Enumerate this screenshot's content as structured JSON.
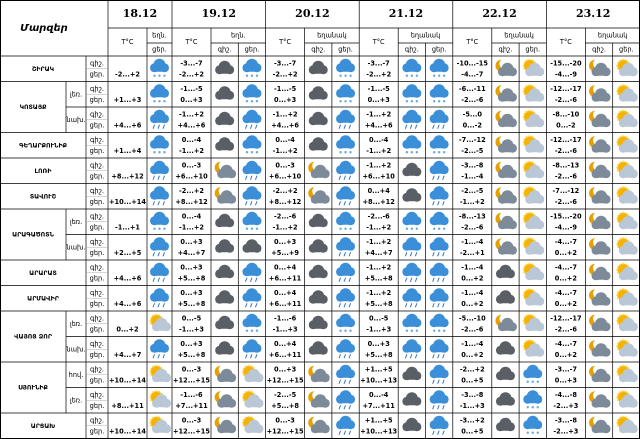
{
  "header": {
    "corner": "Մարզեր",
    "dates": [
      {
        "date": "18.12",
        "temp": "T°C",
        "weather": "եղն.",
        "sub": [
          "ցեր."
        ]
      },
      {
        "date": "19.12",
        "temp": "T°C",
        "weather": "եղն.",
        "sub": [
          "գիշ.",
          "ցեր."
        ]
      },
      {
        "date": "20.12",
        "temp": "T°C",
        "weather": "եղանակ",
        "sub": [
          "գիշ.",
          "ցեր."
        ]
      },
      {
        "date": "21.12",
        "temp": "T°C",
        "weather": "եղանակ",
        "sub": [
          "գիշ.",
          "ցեր."
        ]
      },
      {
        "date": "22.12",
        "temp": "T°C",
        "weather": "եղանակ",
        "sub": [
          "գիշ.",
          "ցեր."
        ]
      },
      {
        "date": "23.12",
        "temp": "T°C",
        "weather": "եղանակ",
        "sub": [
          "գիշ.",
          "ցեր."
        ]
      }
    ]
  },
  "row_labels": [
    "գիշ.",
    "ցեր."
  ],
  "regions": [
    {
      "name": "ՇԻՐԱԿ",
      "groups": [
        {
          "cells": [
            {
              "t": [
                "-2...+2"
              ],
              "i": [
                "s"
              ]
            },
            {
              "t": [
                "-3...-7",
                "-2...+2"
              ],
              "i": [
                "d",
                "s"
              ]
            },
            {
              "t": [
                "-3...-7",
                "-2...+2"
              ],
              "i": [
                "d",
                "s"
              ]
            },
            {
              "t": [
                "-3...-7",
                "-2...+2"
              ],
              "i": [
                "s",
                "s"
              ]
            },
            {
              "t": [
                "-10...-15",
                "-4...-7"
              ],
              "i": [
                "m",
                "u"
              ]
            },
            {
              "t": [
                "-15...-20",
                "-4...-9"
              ],
              "i": [
                "m",
                "u"
              ]
            }
          ]
        }
      ]
    },
    {
      "name": "ԿՈՏԱՅՔ",
      "groups": [
        {
          "label": "լեռ.",
          "cells": [
            {
              "t": [
                "+1...+3"
              ],
              "i": [
                "s"
              ]
            },
            {
              "t": [
                "-1...-5",
                "0...+3"
              ],
              "i": [
                "d",
                "s"
              ]
            },
            {
              "t": [
                "-1...-5",
                "0...+3"
              ],
              "i": [
                "d",
                "s"
              ]
            },
            {
              "t": [
                "-1...-5",
                "0...+3"
              ],
              "i": [
                "s",
                "s"
              ]
            },
            {
              "t": [
                "-6...-11",
                "-2...-6"
              ],
              "i": [
                "m",
                "u"
              ]
            },
            {
              "t": [
                "-12...-17",
                "-2...-6"
              ],
              "i": [
                "m",
                "u"
              ]
            }
          ]
        },
        {
          "label": "նախ.",
          "cells": [
            {
              "t": [
                "+4...+6"
              ],
              "i": [
                "r"
              ]
            },
            {
              "t": [
                "-1...+2",
                "+4...+6"
              ],
              "i": [
                "d",
                "r"
              ]
            },
            {
              "t": [
                "-1...+2",
                "+4...+6"
              ],
              "i": [
                "d",
                "r"
              ]
            },
            {
              "t": [
                "-1...+2",
                "+4...+6"
              ],
              "i": [
                "r",
                "r"
              ]
            },
            {
              "t": [
                "-5...0",
                "0...-2"
              ],
              "i": [
                "m",
                "u"
              ]
            },
            {
              "t": [
                "-8...-10",
                "0...-2"
              ],
              "i": [
                "m",
                "u"
              ]
            }
          ]
        }
      ]
    },
    {
      "name": "ԳԵՂԱՐՔՈՒՆԻՔ",
      "groups": [
        {
          "cells": [
            {
              "t": [
                "+1...+4"
              ],
              "i": [
                "s"
              ]
            },
            {
              "t": [
                "0...-4",
                "-1...+2"
              ],
              "i": [
                "d",
                "s"
              ]
            },
            {
              "t": [
                "0...-4",
                "-1...+2"
              ],
              "i": [
                "d",
                "s"
              ]
            },
            {
              "t": [
                "0...-4",
                "-1...+2"
              ],
              "i": [
                "s",
                "s"
              ]
            },
            {
              "t": [
                "-7...-12",
                "-2...-5"
              ],
              "i": [
                "m",
                "u"
              ]
            },
            {
              "t": [
                "-12...-17",
                "-2...-6"
              ],
              "i": [
                "m",
                "u"
              ]
            }
          ]
        }
      ]
    },
    {
      "name": "ԼՈՌԻ",
      "groups": [
        {
          "cells": [
            {
              "t": [
                "+8...+12"
              ],
              "i": [
                "r"
              ]
            },
            {
              "t": [
                "0...-3",
                "+6...+10"
              ],
              "i": [
                "m",
                "r"
              ]
            },
            {
              "t": [
                "0...-3",
                "+6...+10"
              ],
              "i": [
                "m",
                "r"
              ]
            },
            {
              "t": [
                "-1...+2",
                "+6...+10"
              ],
              "i": [
                "d",
                "r"
              ]
            },
            {
              "t": [
                "-3...-8",
                "-1...-4"
              ],
              "i": [
                "m",
                "u"
              ]
            },
            {
              "t": [
                "-8...-13",
                "-2...-6"
              ],
              "i": [
                "m",
                "u"
              ]
            }
          ]
        }
      ]
    },
    {
      "name": "ՏԱՎՈՒՇ",
      "groups": [
        {
          "cells": [
            {
              "t": [
                "+10...+14"
              ],
              "i": [
                "r"
              ]
            },
            {
              "t": [
                "-2...+2",
                "+8...+12"
              ],
              "i": [
                "m",
                "r"
              ]
            },
            {
              "t": [
                "-2...+2",
                "+8...+12"
              ],
              "i": [
                "m",
                "r"
              ]
            },
            {
              "t": [
                "0...+4",
                "+8...+12"
              ],
              "i": [
                "d",
                "r"
              ]
            },
            {
              "t": [
                "-2...-5",
                "-1...+2"
              ],
              "i": [
                "m",
                "u"
              ]
            },
            {
              "t": [
                "-7...-12",
                "-2...-6"
              ],
              "i": [
                "m",
                "u"
              ]
            }
          ]
        }
      ]
    },
    {
      "name": "ԱՐԱԳԱԾՈՏՆ",
      "groups": [
        {
          "label": "լեռ.",
          "cells": [
            {
              "t": [
                "-1...+1"
              ],
              "i": [
                "s"
              ]
            },
            {
              "t": [
                "0...-4",
                "-1...+2"
              ],
              "i": [
                "d",
                "s"
              ]
            },
            {
              "t": [
                "-2...-6",
                "-1...+2"
              ],
              "i": [
                "d",
                "s"
              ]
            },
            {
              "t": [
                "-2...-6",
                "-1...+2"
              ],
              "i": [
                "s",
                "s"
              ]
            },
            {
              "t": [
                "-8...-13",
                "-2...-6"
              ],
              "i": [
                "m",
                "u"
              ]
            },
            {
              "t": [
                "-15...-20",
                "-4...-9"
              ],
              "i": [
                "m",
                "u"
              ]
            }
          ]
        },
        {
          "label": "նախ.",
          "cells": [
            {
              "t": [
                "+2...+5"
              ],
              "i": [
                "r"
              ]
            },
            {
              "t": [
                "0...+3",
                "+4...+7"
              ],
              "i": [
                "d",
                "d"
              ]
            },
            {
              "t": [
                "0...+3",
                "+5...+9"
              ],
              "i": [
                "d",
                "r"
              ]
            },
            {
              "t": [
                "-1...+2",
                "+4...+7"
              ],
              "i": [
                "r",
                "r"
              ]
            },
            {
              "t": [
                "-1...-4",
                "-2...+1"
              ],
              "i": [
                "m",
                "u"
              ]
            },
            {
              "t": [
                "-4...-7",
                "0...+2"
              ],
              "i": [
                "m",
                "u"
              ]
            }
          ]
        }
      ]
    },
    {
      "name": "ԱՐԱՐԱՏ",
      "groups": [
        {
          "cells": [
            {
              "t": [
                "+4...+6"
              ],
              "i": [
                "r"
              ]
            },
            {
              "t": [
                "0...+3",
                "+5...+8"
              ],
              "i": [
                "d",
                "r"
              ]
            },
            {
              "t": [
                "0...+4",
                "+6...+11"
              ],
              "i": [
                "d",
                "r"
              ]
            },
            {
              "t": [
                "-1...+2",
                "+5...+8"
              ],
              "i": [
                "r",
                "r"
              ]
            },
            {
              "t": [
                "-1...-4",
                "0...+2"
              ],
              "i": [
                "d",
                "u"
              ]
            },
            {
              "t": [
                "-4...-7",
                "0...+2"
              ],
              "i": [
                "m",
                "u"
              ]
            }
          ]
        }
      ]
    },
    {
      "name": "ԱՐՄԱՎԻՐ",
      "groups": [
        {
          "cells": [
            {
              "t": [
                "+4...+6"
              ],
              "i": [
                "r"
              ]
            },
            {
              "t": [
                "0...+3",
                "+5...+8"
              ],
              "i": [
                "d",
                "r"
              ]
            },
            {
              "t": [
                "0...+4",
                "+6...+11"
              ],
              "i": [
                "d",
                "r"
              ]
            },
            {
              "t": [
                "-1...+2",
                "+5...+8"
              ],
              "i": [
                "r",
                "r"
              ]
            },
            {
              "t": [
                "-1...-4",
                "0...+2"
              ],
              "i": [
                "d",
                "u"
              ]
            },
            {
              "t": [
                "-4...-7",
                "0...+2"
              ],
              "i": [
                "m",
                "u"
              ]
            }
          ]
        }
      ]
    },
    {
      "name": "ՎԱՅՈՑ ՁՈՐ",
      "groups": [
        {
          "label": "լեռ.",
          "cells": [
            {
              "t": [
                "0...+2"
              ],
              "i": [
                "u"
              ]
            },
            {
              "t": [
                "0...-5",
                "-1...+3"
              ],
              "i": [
                "d",
                "s"
              ]
            },
            {
              "t": [
                "-1...-6",
                "-1...+3"
              ],
              "i": [
                "d",
                "s"
              ]
            },
            {
              "t": [
                "0...-5",
                "-1...+3"
              ],
              "i": [
                "s",
                "s"
              ]
            },
            {
              "t": [
                "-5...-10",
                "-2...-6"
              ],
              "i": [
                "m",
                "u"
              ]
            },
            {
              "t": [
                "-12...-17",
                "-2...-6"
              ],
              "i": [
                "m",
                "u"
              ]
            }
          ]
        },
        {
          "label": "նախ.",
          "cells": [
            {
              "t": [
                "+4...+7"
              ],
              "i": [
                "r"
              ]
            },
            {
              "t": [
                "0...+3",
                "+5...+8"
              ],
              "i": [
                "d",
                "r"
              ]
            },
            {
              "t": [
                "0...+4",
                "+6...+11"
              ],
              "i": [
                "d",
                "r"
              ]
            },
            {
              "t": [
                "0...+3",
                "+5...+8"
              ],
              "i": [
                "r",
                "r"
              ]
            },
            {
              "t": [
                "-1...-4",
                "0...+2"
              ],
              "i": [
                "d",
                "u"
              ]
            },
            {
              "t": [
                "-4...-7",
                "0...+2"
              ],
              "i": [
                "m",
                "u"
              ]
            }
          ]
        }
      ]
    },
    {
      "name": "ՍՅՈՒՆԻՔ",
      "groups": [
        {
          "label": "հով.",
          "cells": [
            {
              "t": [
                "+10...+14"
              ],
              "i": [
                "u"
              ]
            },
            {
              "t": [
                "0...-3",
                "+12...+15"
              ],
              "i": [
                "m",
                "u"
              ]
            },
            {
              "t": [
                "0...+3",
                "+12...+15"
              ],
              "i": [
                "m",
                "r"
              ]
            },
            {
              "t": [
                "+1...+5",
                "+10...+13"
              ],
              "i": [
                "d",
                "r"
              ]
            },
            {
              "t": [
                "-2...+2",
                "0...+5"
              ],
              "i": [
                "d",
                "s"
              ]
            },
            {
              "t": [
                "-3...-7",
                "0...+3"
              ],
              "i": [
                "m",
                "u"
              ]
            }
          ]
        },
        {
          "label": "լեռ.",
          "cells": [
            {
              "t": [
                "+8...+11"
              ],
              "i": [
                "u"
              ]
            },
            {
              "t": [
                "-1...-6",
                "+7...+11"
              ],
              "i": [
                "m",
                "u"
              ]
            },
            {
              "t": [
                "-2...-5",
                "+5...+8"
              ],
              "i": [
                "m",
                "r"
              ]
            },
            {
              "t": [
                "0...-4",
                "+7...+11"
              ],
              "i": [
                "d",
                "r"
              ]
            },
            {
              "t": [
                "-3...-8",
                "-1...+3"
              ],
              "i": [
                "d",
                "s"
              ]
            },
            {
              "t": [
                "-4...-8",
                "-2...+3"
              ],
              "i": [
                "m",
                "u"
              ]
            }
          ]
        }
      ]
    },
    {
      "name": "ԱՐՑԱԽ",
      "groups": [
        {
          "cells": [
            {
              "t": [
                "+10...+14"
              ],
              "i": [
                "u"
              ]
            },
            {
              "t": [
                "0...-3",
                "+12...+15"
              ],
              "i": [
                "m",
                "u"
              ]
            },
            {
              "t": [
                "0...-3",
                "+12...+15"
              ],
              "i": [
                "m",
                "r"
              ]
            },
            {
              "t": [
                "+1...+5",
                "+10...+13"
              ],
              "i": [
                "d",
                "r"
              ]
            },
            {
              "t": [
                "-3...+2",
                "0...+5"
              ],
              "i": [
                "d",
                "s"
              ]
            },
            {
              "t": [
                "-3...-8",
                "-2...+3"
              ],
              "i": [
                "m",
                "u"
              ]
            }
          ]
        }
      ]
    }
  ]
}
